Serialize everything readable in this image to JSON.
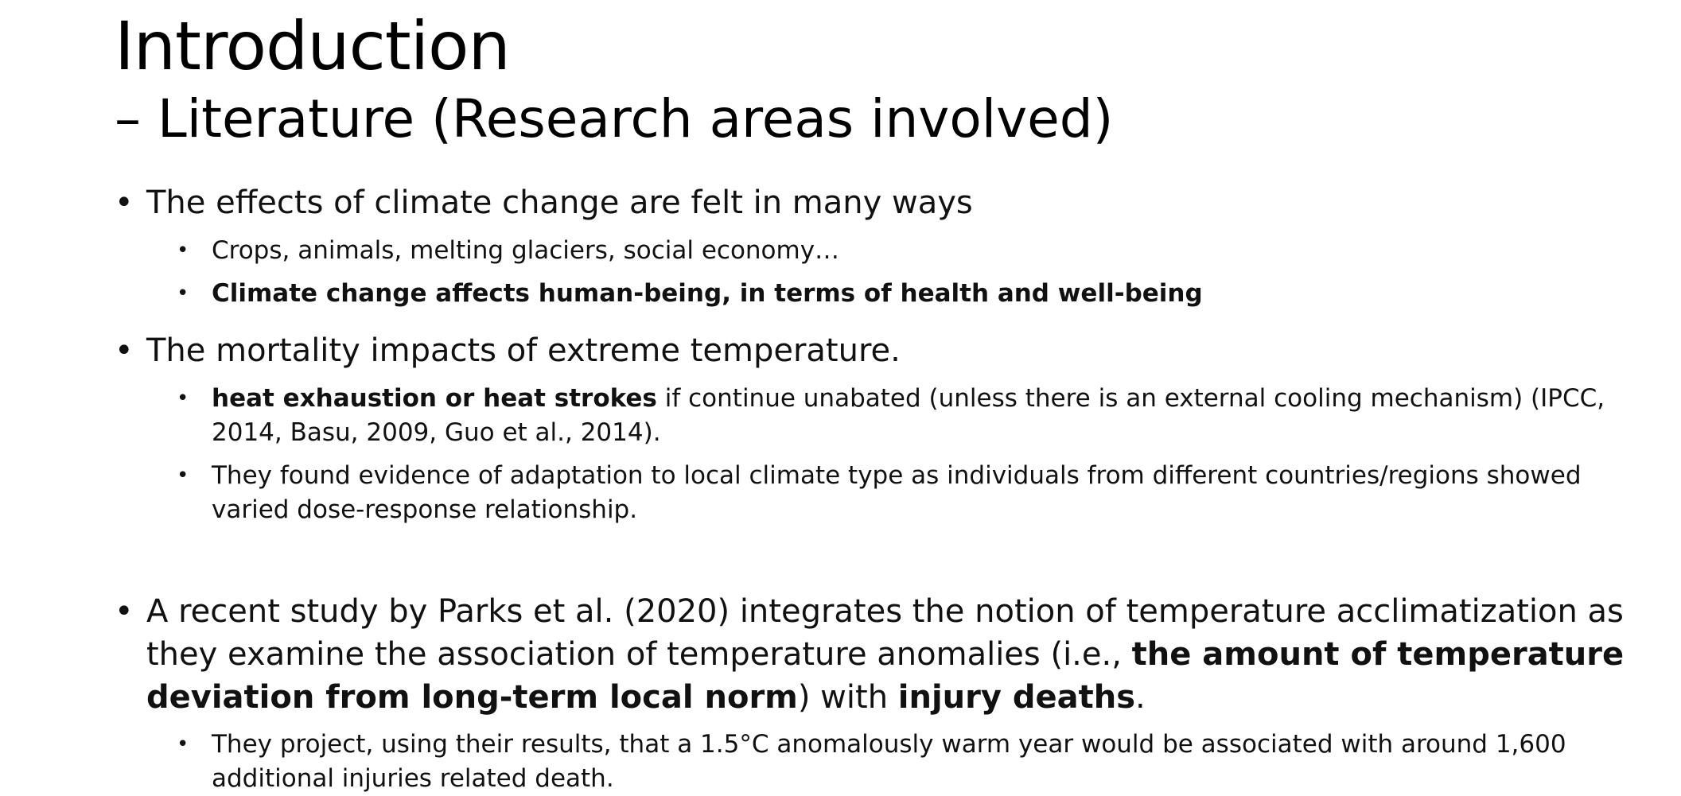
{
  "slide": {
    "title": "Introduction",
    "subtitle": "– Literature (Research areas involved)",
    "bullet_char": "•",
    "bullets": [
      {
        "text": "The effects of climate change are felt in many ways",
        "sub": [
          {
            "text": "Crops, animals, melting glaciers, social economy…"
          },
          {
            "bold": "Climate change affects human-being, in terms of health and well-being"
          }
        ]
      },
      {
        "text": "The mortality impacts of extreme temperature.",
        "sub": [
          {
            "bold": "heat exhaustion or heat strokes",
            "rest": " if continue unabated (unless there is an external cooling mechanism) (IPCC, 2014, Basu, 2009, Guo et al., 2014)."
          },
          {
            "text": "They found evidence of adaptation to local climate type as individuals from different countries/regions showed varied dose-response relationship."
          }
        ]
      },
      {
        "p1": "A recent study by Parks et al. (2020) integrates the notion of temperature acclimatization as they examine the association of temperature anomalies (i.e., ",
        "b1": "the amount of temperature deviation from long-term local norm",
        "p2": ") with ",
        "b2": "injury deaths",
        "p3": ".",
        "sub": [
          {
            "text": "They project, using their results, that a 1.5°C anomalously warm year would be associated with around 1,600 additional injuries related death."
          }
        ]
      }
    ]
  }
}
